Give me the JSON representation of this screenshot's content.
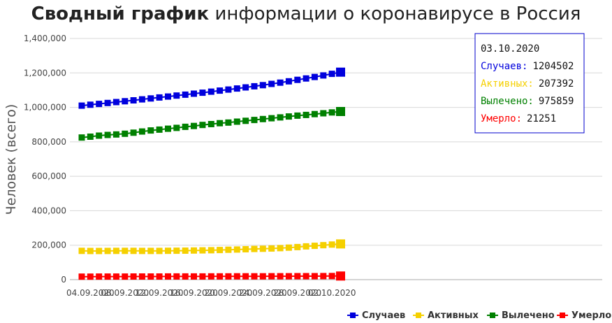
{
  "title": {
    "bold": "Сводный график",
    "rest": "информации о коронавирусе в Россия"
  },
  "chart_data": {
    "type": "line",
    "x": [
      "03.09.2020",
      "04.09.2020",
      "05.09.2020",
      "06.09.2020",
      "07.09.2020",
      "08.09.2020",
      "09.09.2020",
      "10.09.2020",
      "11.09.2020",
      "12.09.2020",
      "13.09.2020",
      "14.09.2020",
      "15.09.2020",
      "16.09.2020",
      "17.09.2020",
      "18.09.2020",
      "19.09.2020",
      "20.09.2020",
      "21.09.2020",
      "22.09.2020",
      "23.09.2020",
      "24.09.2020",
      "25.09.2020",
      "26.09.2020",
      "27.09.2020",
      "28.09.2020",
      "29.09.2020",
      "30.09.2020",
      "01.10.2020",
      "02.10.2020",
      "03.10.2020"
    ],
    "xticks": [
      "04.09.2020",
      "08.09.2020",
      "12.09.2020",
      "16.09.2020",
      "20.09.2020",
      "24.09.2020",
      "28.09.2020",
      "02.10.2020"
    ],
    "ylabel": "Человек (всего)",
    "ylim": [
      0,
      1400000
    ],
    "yticks": [
      0,
      200000,
      400000,
      600000,
      800000,
      1000000,
      1200000,
      1400000
    ],
    "ytick_labels": [
      "0",
      "200,000",
      "400,000",
      "600,000",
      "800,000",
      "1,000,000",
      "1,200,000",
      "1,400,000"
    ],
    "grid": true,
    "legend_position": "bottom-right",
    "series": [
      {
        "name": "Случаев",
        "color": "#0000dd",
        "values": [
          1009995,
          1015105,
          1020310,
          1025505,
          1030690,
          1035789,
          1041007,
          1046370,
          1051874,
          1057362,
          1062811,
          1068320,
          1073849,
          1079519,
          1085281,
          1091186,
          1097251,
          1103399,
          1109595,
          1115810,
          1122241,
          1128836,
          1136048,
          1143571,
          1151438,
          1159573,
          1167805,
          1176286,
          1185231,
          1194643,
          1204502
        ]
      },
      {
        "name": "Активных",
        "color": "#f5d000",
        "values": [
          167000,
          166500,
          166200,
          166700,
          167100,
          167300,
          167000,
          166900,
          166600,
          166900,
          167400,
          168000,
          168600,
          169100,
          170000,
          171000,
          172000,
          173500,
          175000,
          176500,
          178000,
          179500,
          181000,
          183000,
          186000,
          189000,
          193000,
          196500,
          200000,
          203700,
          207392
        ]
      },
      {
        "name": "Вылечено",
        "color": "#008000",
        "values": [
          825000,
          830000,
          836000,
          840000,
          843000,
          847000,
          853000,
          860000,
          866000,
          871000,
          876000,
          881000,
          887000,
          892000,
          898000,
          903000,
          908000,
          912000,
          917000,
          922000,
          927000,
          932000,
          937000,
          942000,
          947000,
          952000,
          956000,
          961000,
          965800,
          970800,
          975859
        ]
      },
      {
        "name": "Умерло",
        "color": "#ff0000",
        "values": [
          17528,
          17648,
          17758,
          17820,
          17871,
          17993,
          18123,
          18200,
          18323,
          18447,
          18534,
          18580,
          18647,
          18728,
          18814,
          18922,
          19028,
          19138,
          19280,
          19410,
          19551,
          19680,
          19799,
          19937,
          20062,
          20160,
          20272,
          20383,
          20576,
          20908,
          21251
        ]
      }
    ]
  },
  "tooltip": {
    "date": "03.10.2020",
    "rows": [
      {
        "label": "Случаев:",
        "value": "1204502",
        "color": "#0000dd"
      },
      {
        "label": "Активных:",
        "value": "207392",
        "color": "#f5d000"
      },
      {
        "label": "Вылечено:",
        "value": "975859",
        "color": "#008000"
      },
      {
        "label": "Умерло:",
        "value": "21251",
        "color": "#ff0000"
      }
    ],
    "border_color": "#0000cc"
  }
}
